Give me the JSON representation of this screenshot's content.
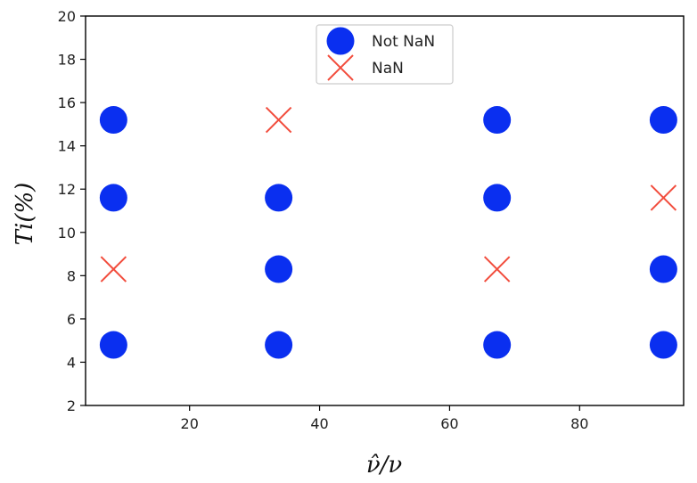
{
  "chart_data": {
    "type": "scatter",
    "xlabel": "ν̂/ν",
    "ylabel": "Ti(%)",
    "xlim": [
      4,
      96
    ],
    "ylim": [
      2,
      20
    ],
    "xticks": [
      20,
      40,
      60,
      80
    ],
    "yticks": [
      2,
      4,
      6,
      8,
      10,
      12,
      14,
      16,
      18,
      20
    ],
    "grid": false,
    "legend": {
      "placement": "top-center"
    },
    "series": [
      {
        "name": "Not NaN",
        "marker": "circle",
        "color": "#0a2ff0",
        "points": [
          {
            "x": 8.3,
            "y": 15.2
          },
          {
            "x": 8.3,
            "y": 11.6
          },
          {
            "x": 8.3,
            "y": 4.8
          },
          {
            "x": 33.7,
            "y": 11.6
          },
          {
            "x": 33.7,
            "y": 8.3
          },
          {
            "x": 33.7,
            "y": 4.8
          },
          {
            "x": 67.3,
            "y": 15.2
          },
          {
            "x": 67.3,
            "y": 11.6
          },
          {
            "x": 67.3,
            "y": 4.8
          },
          {
            "x": 92.9,
            "y": 15.2
          },
          {
            "x": 92.9,
            "y": 8.3
          },
          {
            "x": 92.9,
            "y": 4.8
          }
        ]
      },
      {
        "name": "NaN",
        "marker": "x",
        "color": "#f24c3c",
        "points": [
          {
            "x": 8.3,
            "y": 8.3
          },
          {
            "x": 33.7,
            "y": 15.2
          },
          {
            "x": 67.3,
            "y": 8.3
          },
          {
            "x": 92.9,
            "y": 11.6
          }
        ]
      }
    ]
  }
}
